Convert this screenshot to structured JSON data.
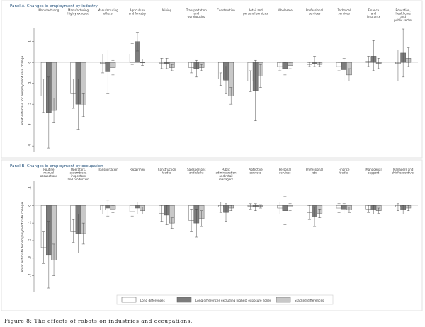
{
  "colors": {
    "long": "#ffffff",
    "highest": "#7c7c7c",
    "stacked": "#c8c8c8",
    "panel_bg": "#ffffff",
    "panel_frame": "#e2e2e2",
    "title_color": "#1f4e79",
    "axis": "#555555"
  },
  "legend": [
    "Long differences",
    "Long differences excluding highest exposure zones",
    "Stacked differences"
  ],
  "caption": "Figure 8: The effects of robots on industries and occupations.",
  "chart_data": [
    {
      "type": "bar",
      "title": "Panel A. Changes in employment by industry",
      "ylabel": "Point estimate for employment rate change",
      "ylim": [
        -4.3,
        1.6
      ],
      "yticks": [
        1,
        0,
        -1,
        -2,
        -3,
        -4
      ],
      "ytick_labels": [
        "1",
        "0",
        "-1",
        "-2",
        "-3",
        "-4"
      ],
      "categories": [
        [
          "Manufacturing"
        ],
        [
          "Manufacturing",
          "highly exposed"
        ],
        [
          "Manufacturing",
          "others"
        ],
        [
          "Agriculture",
          "and forestry"
        ],
        [
          "Mining"
        ],
        [
          "Transportation",
          "and",
          "warehousing"
        ],
        [
          "Construction"
        ],
        [
          "Retail and",
          "personal services"
        ],
        [
          "Wholesale"
        ],
        [
          "Professional",
          "services"
        ],
        [
          "Technical",
          "services"
        ],
        [
          "Finance",
          "and",
          "insurance"
        ],
        [
          "Education,",
          "healthcare",
          "and",
          "public sector"
        ]
      ],
      "series": [
        {
          "values": [
            -1.6,
            -1.5,
            -0.05,
            0.4,
            -0.05,
            -0.25,
            -0.8,
            -0.9,
            -0.2,
            -0.1,
            -0.2,
            0.05,
            -0.05
          ],
          "ci": [
            [
              -2.4,
              -0.8
            ],
            [
              -2.2,
              -0.8
            ],
            [
              -0.5,
              0.4
            ],
            [
              -0.1,
              0.9
            ],
            [
              -0.3,
              0.2
            ],
            [
              -0.5,
              0.0
            ],
            [
              -1.1,
              -0.5
            ],
            [
              -1.4,
              -0.4
            ],
            [
              -0.4,
              0.0
            ],
            [
              -0.2,
              0.0
            ],
            [
              -0.4,
              0.0
            ],
            [
              -0.2,
              0.3
            ],
            [
              -0.9,
              0.6
            ]
          ]
        },
        {
          "values": [
            -2.4,
            -2.0,
            -0.45,
            1.0,
            -0.05,
            -0.3,
            -0.85,
            -1.35,
            -0.3,
            -0.05,
            -0.35,
            0.3,
            0.45
          ],
          "ci": [
            [
              -4.1,
              -0.7
            ],
            [
              -3.2,
              -0.8
            ],
            [
              -1.5,
              0.6
            ],
            [
              0.55,
              1.45
            ],
            [
              -0.3,
              0.2
            ],
            [
              -0.7,
              0.1
            ],
            [
              -1.5,
              -0.2
            ],
            [
              -2.8,
              0.1
            ],
            [
              -0.6,
              0.0
            ],
            [
              -0.2,
              0.3
            ],
            [
              -0.9,
              0.2
            ],
            [
              -0.4,
              1.05
            ],
            [
              -0.7,
              1.6
            ]
          ]
        },
        {
          "values": [
            -2.3,
            -2.05,
            -0.25,
            0.0,
            -0.25,
            -0.25,
            -1.6,
            -0.65,
            -0.15,
            -0.1,
            -0.6,
            -0.05,
            0.2
          ],
          "ci": [
            [
              -2.9,
              -1.7
            ],
            [
              -2.6,
              -1.5
            ],
            [
              -0.6,
              0.1
            ],
            [
              -0.15,
              0.15
            ],
            [
              -0.4,
              -0.1
            ],
            [
              -0.4,
              -0.1
            ],
            [
              -2.0,
              -1.2
            ],
            [
              -1.2,
              -0.1
            ],
            [
              -0.3,
              0.0
            ],
            [
              -0.2,
              0.0
            ],
            [
              -0.9,
              -0.3
            ],
            [
              -0.3,
              0.2
            ],
            [
              -0.2,
              0.7
            ]
          ]
        }
      ]
    },
    {
      "type": "bar",
      "title": "Panel B. Changes in employment by occupation",
      "ylabel": "Point estimate for employment rate change",
      "ylim": [
        -4.9,
        1.3
      ],
      "yticks": [
        1,
        0,
        -1,
        -2,
        -3,
        -4
      ],
      "ytick_labels": [
        ".1",
        "0",
        "-.1",
        "-.2",
        "-.3",
        "-.4"
      ],
      "categories": [
        [
          "Routine",
          "manual",
          "occupations"
        ],
        [
          "Operators,",
          "assemblers,",
          "inspectors",
          "and production"
        ],
        [
          "Transportation"
        ],
        [
          "Repairmen"
        ],
        [
          "Construction",
          "trades"
        ],
        [
          "Salespersons",
          "and clerks"
        ],
        [
          "Public",
          "administration",
          "and retail",
          "managers"
        ],
        [
          "Protective",
          "services"
        ],
        [
          "Personal",
          "services"
        ],
        [
          "Professional",
          "jobs"
        ],
        [
          "Finance",
          "trades"
        ],
        [
          "Managerial",
          "support"
        ],
        [
          "Managers and",
          "chief executives"
        ]
      ],
      "series": [
        {
          "values": [
            -2.4,
            -1.5,
            -0.25,
            -0.35,
            -0.45,
            -0.85,
            -0.1,
            -0.05,
            -0.15,
            -0.4,
            -0.15,
            -0.2,
            -0.1
          ],
          "ci": [
            [
              -3.3,
              -1.5
            ],
            [
              -2.1,
              -0.8
            ],
            [
              -0.5,
              0.0
            ],
            [
              -0.6,
              -0.1
            ],
            [
              -0.9,
              0.0
            ],
            [
              -1.5,
              -0.2
            ],
            [
              -0.4,
              0.2
            ],
            [
              -0.2,
              0.1
            ],
            [
              -0.5,
              0.2
            ],
            [
              -0.8,
              0.0
            ],
            [
              -0.4,
              0.1
            ],
            [
              -0.4,
              0.0
            ],
            [
              -0.3,
              0.1
            ]
          ]
        },
        {
          "values": [
            -2.8,
            -1.6,
            -0.15,
            -0.15,
            -0.55,
            -1.0,
            -0.4,
            -0.1,
            -0.3,
            -0.65,
            -0.2,
            -0.25,
            -0.25
          ],
          "ci": [
            [
              -4.7,
              -0.9
            ],
            [
              -2.7,
              -0.5
            ],
            [
              -0.6,
              0.3
            ],
            [
              -0.5,
              0.2
            ],
            [
              -1.1,
              0.0
            ],
            [
              -1.8,
              -0.2
            ],
            [
              -0.9,
              0.1
            ],
            [
              -0.3,
              0.1
            ],
            [
              -1.1,
              0.5
            ],
            [
              -1.2,
              -0.1
            ],
            [
              -0.5,
              0.1
            ],
            [
              -0.5,
              0.0
            ],
            [
              -0.5,
              0.0
            ]
          ]
        },
        {
          "values": [
            -3.1,
            -1.6,
            -0.2,
            -0.3,
            -1.0,
            -0.75,
            -0.15,
            -0.05,
            -0.1,
            -0.45,
            -0.25,
            -0.3,
            -0.15
          ],
          "ci": [
            [
              -4.0,
              -2.2
            ],
            [
              -2.2,
              -1.0
            ],
            [
              -0.4,
              0.0
            ],
            [
              -0.5,
              -0.1
            ],
            [
              -1.3,
              -0.7
            ],
            [
              -1.2,
              -0.3
            ],
            [
              -0.3,
              0.0
            ],
            [
              -0.15,
              0.05
            ],
            [
              -0.3,
              0.1
            ],
            [
              -0.7,
              -0.2
            ],
            [
              -0.4,
              -0.1
            ],
            [
              -0.45,
              -0.15
            ],
            [
              -0.3,
              0.0
            ]
          ]
        }
      ]
    }
  ]
}
